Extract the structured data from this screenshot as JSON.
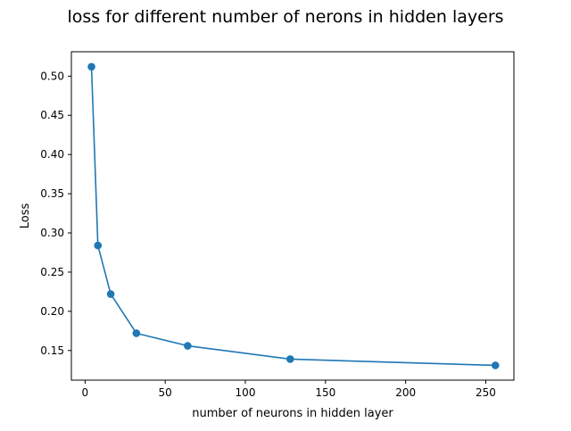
{
  "chart_data": {
    "type": "line",
    "title": "loss for different number of nerons in hidden layers",
    "xlabel": "number of neurons in hidden layer",
    "ylabel": "Loss",
    "xlim": [
      -8.55,
      267.55
    ],
    "ylim": [
      0.1122,
      0.5311
    ],
    "xticks": [
      0,
      50,
      100,
      150,
      200,
      250
    ],
    "yticks": [
      0.15,
      0.2,
      0.25,
      0.3,
      0.35,
      0.4,
      0.45,
      0.5
    ],
    "ytick_labels": [
      "0.15",
      "0.20",
      "0.25",
      "0.30",
      "0.35",
      "0.40",
      "0.45",
      "0.50"
    ],
    "grid": false,
    "series": [
      {
        "color": "#1f77b4",
        "marker": "circle",
        "x": [
          4,
          8,
          16,
          32,
          64,
          128,
          256
        ],
        "y": [
          0.512,
          0.284,
          0.222,
          0.172,
          0.156,
          0.139,
          0.131
        ]
      }
    ]
  }
}
